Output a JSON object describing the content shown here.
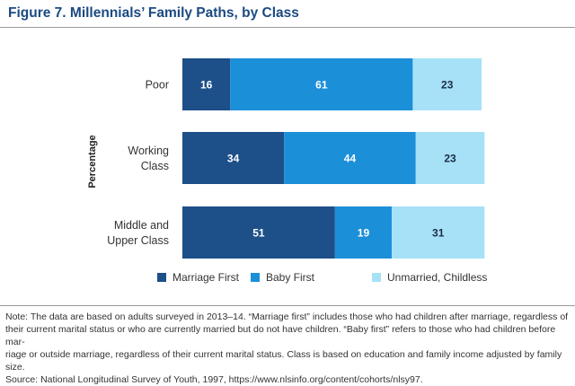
{
  "figure": {
    "title": "Figure 7. Millennials’ Family Paths, by Class",
    "note_lines": [
      "Note: The data are based on adults surveyed in 2013–14. “Marriage first” includes those who had children after marriage, regardless of",
      "their current marital status or who are currently married but do not have children. “Baby first” refers to those who had children before mar-",
      "riage or outside marriage, regardless of their current marital status. Class is based on education and family income adjusted by family size.",
      "Source: National Longitudinal Survey of Youth, 1997, https://www.nlsinfo.org/content/cohorts/nlsy97."
    ]
  },
  "chart_data": {
    "type": "bar",
    "orientation": "horizontal",
    "stacked": true,
    "title": "Figure 7. Millennials’ Family Paths, by Class",
    "ylabel": "Percentage",
    "xlim": [
      0,
      100
    ],
    "grid": false,
    "legend_position": "bottom",
    "categories": [
      [
        "Poor"
      ],
      [
        "Working",
        "Class"
      ],
      [
        "Middle and",
        "Upper Class"
      ]
    ],
    "series": [
      {
        "name": "Marriage First",
        "values": [
          16,
          34,
          51
        ],
        "color": "#1d4f88",
        "label_color": "#ffffff"
      },
      {
        "name": "Baby First",
        "values": [
          61,
          44,
          19
        ],
        "color": "#1c8fd9",
        "label_color": "#ffffff"
      },
      {
        "name": "Unmarried, Childless",
        "values": [
          23,
          23,
          31
        ],
        "color": "#a6e1f8",
        "label_color": "#1d2d44"
      }
    ]
  }
}
